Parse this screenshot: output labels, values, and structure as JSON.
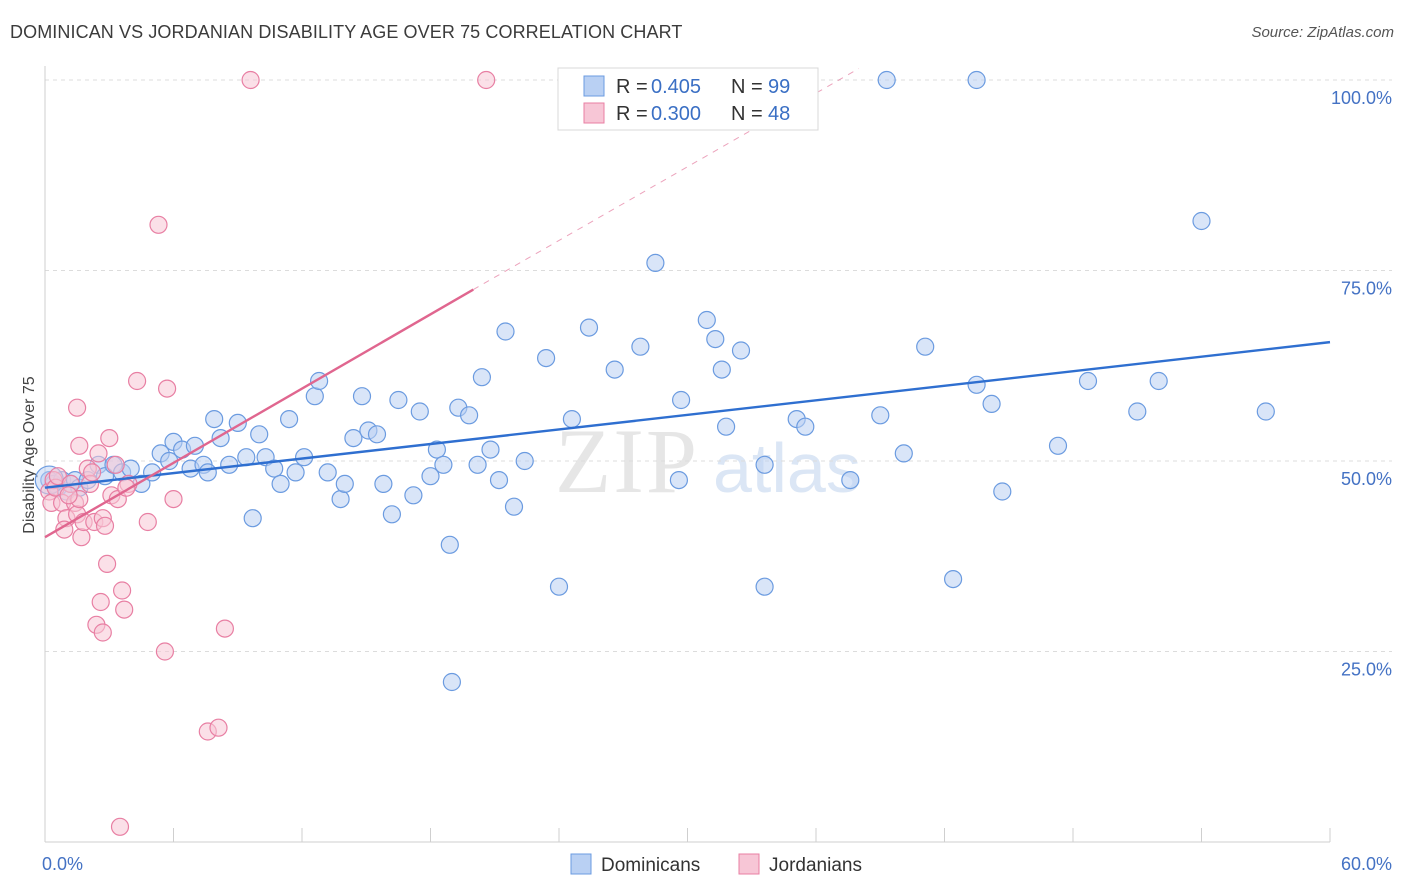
{
  "title": "DOMINICAN VS JORDANIAN DISABILITY AGE OVER 75 CORRELATION CHART",
  "source": "Source: ZipAtlas.com",
  "chart_data": {
    "type": "scatter",
    "title": "DOMINICAN VS JORDANIAN DISABILITY AGE OVER 75 CORRELATION CHART",
    "xlabel": "",
    "ylabel": "Disability Age Over 75",
    "xlim": [
      0,
      60
    ],
    "ylim": [
      0,
      102
    ],
    "x_tick_labels": [
      "0.0%",
      "60.0%"
    ],
    "y_ticks": [
      25,
      50,
      75,
      100
    ],
    "y_tick_labels": [
      "25.0%",
      "50.0%",
      "75.0%",
      "100.0%"
    ],
    "watermark": "ZIPatlas",
    "legend": {
      "r_label": "R =",
      "n_label": "N =",
      "entries": [
        {
          "name": "Dominicans",
          "r": "0.405",
          "n": "99",
          "color": "#6b9be0",
          "fill": "#b9d0f3"
        },
        {
          "name": "Jordanians",
          "r": "0.300",
          "n": "48",
          "color": "#e87fa3",
          "fill": "#f7c6d6"
        }
      ]
    },
    "series": [
      {
        "name": "Dominicans",
        "color": "#6b9be0",
        "trend": {
          "x": [
            0,
            60
          ],
          "y": [
            46.5,
            65.6
          ],
          "style": "solid",
          "color": "#2f6fd0"
        },
        "points": [
          [
            0.2,
            47.5
          ],
          [
            0.4,
            47.0
          ],
          [
            0.6,
            46.5
          ],
          [
            0.8,
            47.5
          ],
          [
            1.0,
            46.0
          ],
          [
            1.2,
            47.0
          ],
          [
            1.4,
            47.5
          ],
          [
            1.6,
            46.5
          ],
          [
            2.0,
            47.5
          ],
          [
            2.5,
            49.5
          ],
          [
            2.8,
            48.0
          ],
          [
            3.2,
            49.5
          ],
          [
            3.6,
            48.5
          ],
          [
            4.0,
            49.0
          ],
          [
            4.5,
            47.0
          ],
          [
            5.0,
            48.5
          ],
          [
            5.4,
            51.0
          ],
          [
            5.8,
            50.0
          ],
          [
            6.0,
            52.5
          ],
          [
            6.4,
            51.5
          ],
          [
            6.8,
            49.0
          ],
          [
            7.0,
            52.0
          ],
          [
            7.4,
            49.5
          ],
          [
            7.6,
            48.5
          ],
          [
            7.9,
            55.5
          ],
          [
            8.2,
            53.0
          ],
          [
            8.6,
            49.5
          ],
          [
            9.0,
            55.0
          ],
          [
            9.4,
            50.5
          ],
          [
            9.7,
            42.5
          ],
          [
            10.0,
            53.5
          ],
          [
            10.3,
            50.5
          ],
          [
            10.7,
            49.0
          ],
          [
            11.0,
            47.0
          ],
          [
            11.4,
            55.5
          ],
          [
            11.7,
            48.5
          ],
          [
            12.1,
            50.5
          ],
          [
            12.6,
            58.5
          ],
          [
            12.8,
            60.5
          ],
          [
            13.2,
            48.5
          ],
          [
            13.8,
            45.0
          ],
          [
            14.0,
            47.0
          ],
          [
            14.4,
            53.0
          ],
          [
            14.8,
            58.5
          ],
          [
            15.1,
            54.0
          ],
          [
            15.5,
            53.5
          ],
          [
            15.8,
            47.0
          ],
          [
            16.2,
            43.0
          ],
          [
            16.5,
            58.0
          ],
          [
            17.2,
            45.5
          ],
          [
            17.5,
            56.5
          ],
          [
            18.0,
            48.0
          ],
          [
            18.3,
            51.5
          ],
          [
            18.6,
            49.5
          ],
          [
            18.9,
            39.0
          ],
          [
            19.3,
            57.0
          ],
          [
            19.8,
            56.0
          ],
          [
            20.2,
            49.5
          ],
          [
            20.4,
            61.0
          ],
          [
            20.8,
            51.5
          ],
          [
            21.2,
            47.5
          ],
          [
            21.5,
            67.0
          ],
          [
            21.9,
            44.0
          ],
          [
            22.4,
            50.0
          ],
          [
            23.4,
            63.5
          ],
          [
            24.0,
            33.5
          ],
          [
            24.6,
            55.5
          ],
          [
            25.4,
            67.5
          ],
          [
            26.6,
            62.0
          ],
          [
            27.8,
            65.0
          ],
          [
            28.5,
            76.0
          ],
          [
            29.6,
            47.5
          ],
          [
            29.7,
            58.0
          ],
          [
            30.9,
            68.5
          ],
          [
            31.3,
            66.0
          ],
          [
            31.6,
            62.0
          ],
          [
            31.8,
            54.5
          ],
          [
            32.5,
            64.5
          ],
          [
            33.6,
            49.5
          ],
          [
            33.6,
            33.5
          ],
          [
            35.1,
            55.5
          ],
          [
            35.5,
            54.5
          ],
          [
            37.6,
            47.5
          ],
          [
            39.0,
            56.0
          ],
          [
            40.1,
            51.0
          ],
          [
            41.1,
            65.0
          ],
          [
            42.4,
            34.5
          ],
          [
            43.5,
            60.0
          ],
          [
            44.2,
            57.5
          ],
          [
            44.7,
            46.0
          ],
          [
            47.3,
            52.0
          ],
          [
            48.7,
            60.5
          ],
          [
            51.0,
            56.5
          ],
          [
            52.0,
            60.5
          ],
          [
            54.0,
            81.5
          ],
          [
            57.0,
            56.5
          ],
          [
            43.5,
            100.0
          ],
          [
            39.3,
            100.0
          ],
          [
            19.0,
            21.0
          ]
        ]
      },
      {
        "name": "Jordanians",
        "color": "#e87fa3",
        "trend": {
          "x": [
            0,
            20.0
          ],
          "y": [
            40.0,
            72.5
          ],
          "style": "solid",
          "color": "#e0668f",
          "extended_x": [
            20.0,
            38.0
          ],
          "extended_y": [
            72.5,
            101.5
          ]
        },
        "points": [
          [
            0.2,
            46.0
          ],
          [
            0.3,
            44.5
          ],
          [
            0.4,
            47.5
          ],
          [
            0.5,
            46.5
          ],
          [
            0.6,
            48.0
          ],
          [
            0.8,
            44.5
          ],
          [
            1.0,
            42.5
          ],
          [
            1.2,
            47.0
          ],
          [
            1.4,
            44.5
          ],
          [
            1.5,
            43.0
          ],
          [
            1.6,
            45.0
          ],
          [
            1.7,
            40.0
          ],
          [
            1.8,
            42.0
          ],
          [
            2.0,
            49.0
          ],
          [
            2.1,
            47.0
          ],
          [
            2.3,
            42.0
          ],
          [
            2.4,
            28.5
          ],
          [
            2.5,
            51.0
          ],
          [
            2.6,
            31.5
          ],
          [
            2.7,
            42.5
          ],
          [
            2.8,
            41.5
          ],
          [
            2.9,
            36.5
          ],
          [
            3.0,
            53.0
          ],
          [
            3.1,
            45.5
          ],
          [
            3.3,
            49.5
          ],
          [
            3.4,
            45.0
          ],
          [
            3.6,
            33.0
          ],
          [
            3.7,
            30.5
          ],
          [
            3.9,
            47.0
          ],
          [
            4.3,
            60.5
          ],
          [
            4.8,
            42.0
          ],
          [
            5.3,
            81.0
          ],
          [
            5.6,
            25.0
          ],
          [
            5.7,
            59.5
          ],
          [
            6.0,
            45.0
          ],
          [
            7.6,
            14.5
          ],
          [
            8.1,
            15.0
          ],
          [
            8.4,
            28.0
          ],
          [
            9.6,
            100.0
          ],
          [
            20.6,
            100.0
          ],
          [
            1.5,
            57.0
          ],
          [
            2.7,
            27.5
          ],
          [
            3.5,
            2.0
          ],
          [
            1.6,
            52.0
          ],
          [
            1.1,
            45.5
          ],
          [
            0.9,
            41.0
          ],
          [
            2.2,
            48.5
          ],
          [
            3.8,
            46.5
          ]
        ]
      }
    ]
  }
}
